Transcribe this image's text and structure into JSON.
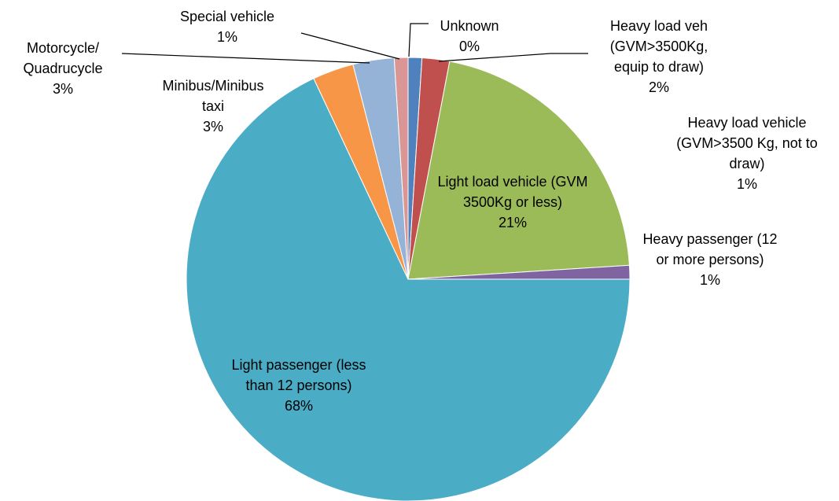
{
  "chart_data": {
    "type": "pie",
    "categories": [
      "Unknown",
      "Heavy load vehicle (GVM>3500 Kg, not to draw)",
      "Heavy load veh (GVM>3500Kg, equip to draw)",
      "Light load vehicle (GVM 3500Kg or less)",
      "Heavy passenger (12 or more persons)",
      "Light passenger (less than 12 persons)",
      "Minibus/Minibus taxi",
      "Motorcycle/ Quadrucycle",
      "Special vehicle"
    ],
    "values": [
      0,
      1,
      2,
      21,
      1,
      68,
      3,
      3,
      1
    ],
    "value_labels": [
      "0%",
      "1%",
      "2%",
      "21%",
      "1%",
      "68%",
      "3%",
      "3%",
      "1%"
    ],
    "colors": [
      "#3f6fa8",
      "#4f81bd",
      "#c0504d",
      "#9bbb59",
      "#8064a2",
      "#4bacc6",
      "#f79646",
      "#95b3d7",
      "#d99694"
    ]
  }
}
